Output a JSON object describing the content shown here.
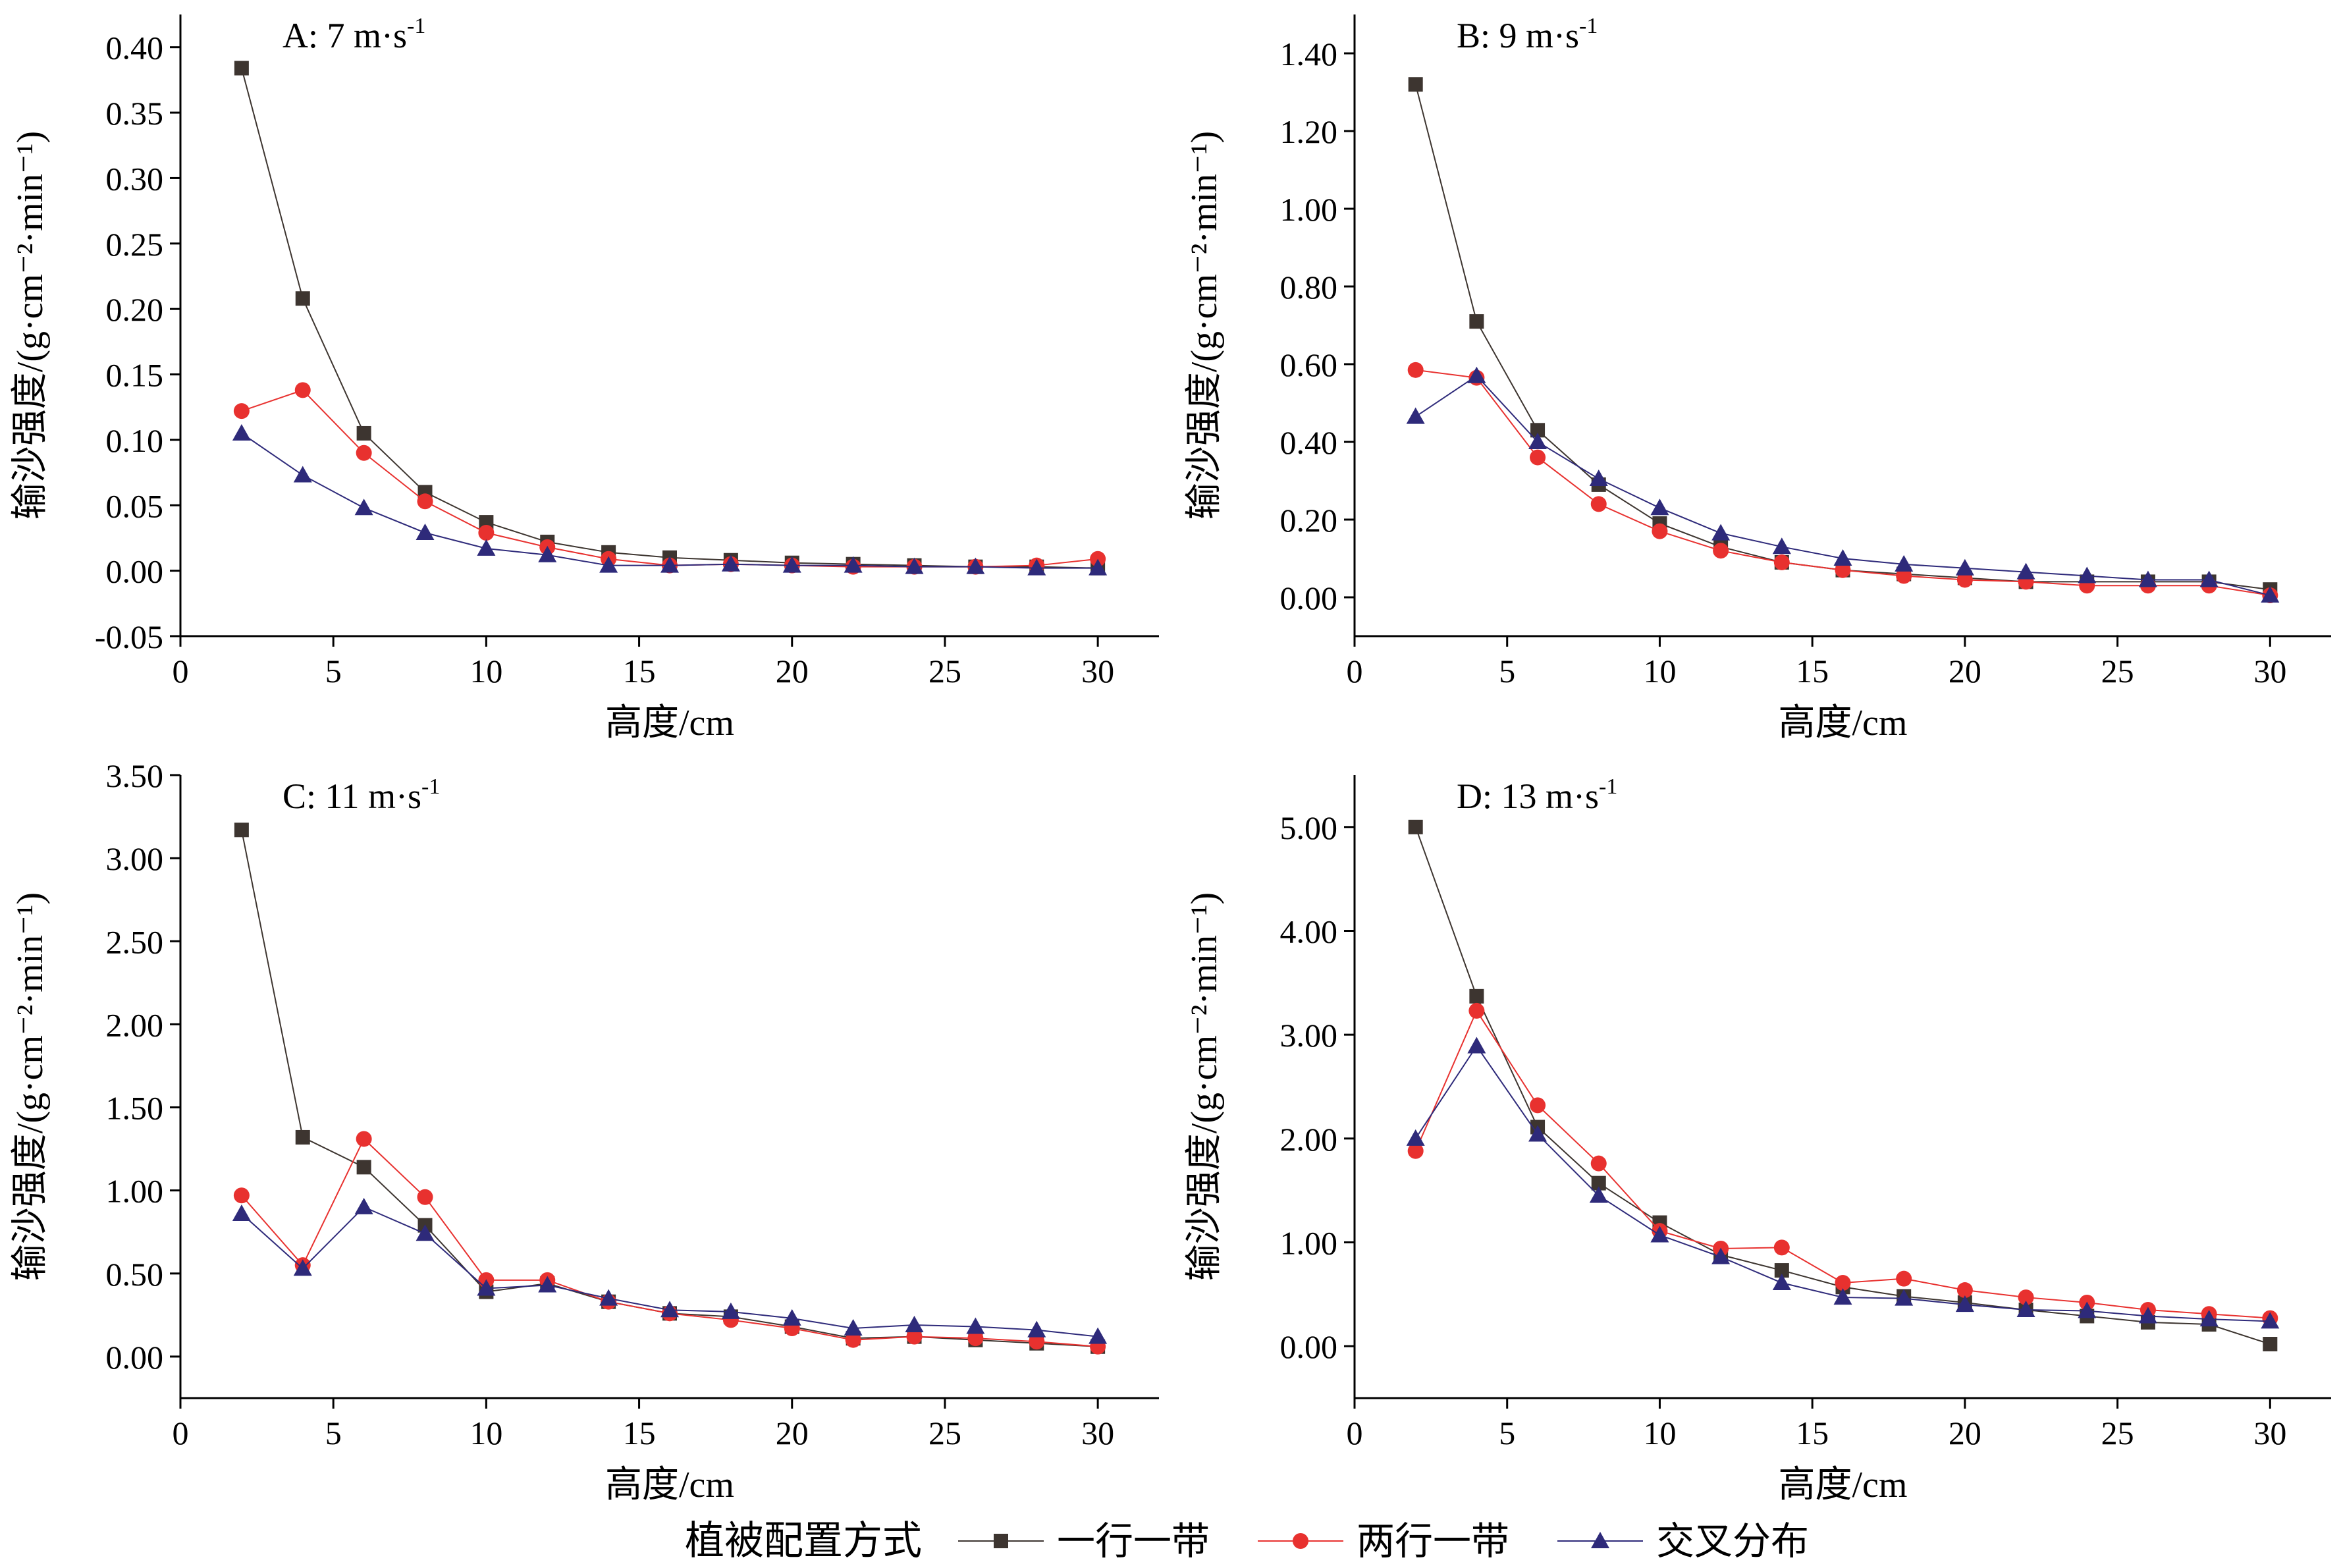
{
  "x_axis_label": "高度/cm",
  "y_axis_label": "输沙强度/(g·cm⁻²·min⁻¹)",
  "legend": {
    "title": "植被配置方式",
    "entries": [
      "一行一带",
      "两行一带",
      "交叉分布"
    ]
  },
  "series_styles": [
    {
      "name": "一行一带",
      "color": "#3d3530",
      "marker": "square"
    },
    {
      "name": "两行一带",
      "color": "#e8312f",
      "marker": "circle"
    },
    {
      "name": "交叉分布",
      "color": "#2e2a7a",
      "marker": "triangle"
    }
  ],
  "chart_data": [
    {
      "type": "line",
      "panel_label": "A: 7 m·s",
      "panel_sup": "-1",
      "x": [
        2,
        4,
        6,
        8,
        10,
        12,
        14,
        16,
        18,
        20,
        22,
        24,
        26,
        28,
        30
      ],
      "xlim": [
        0,
        32
      ],
      "xticks": [
        0,
        5,
        10,
        15,
        20,
        25,
        30
      ],
      "ylim": [
        -0.05,
        0.425
      ],
      "yticks": [
        -0.05,
        0.0,
        0.05,
        0.1,
        0.15,
        0.2,
        0.25,
        0.3,
        0.35,
        0.4
      ],
      "ytick_labels": [
        "-0.05",
        "0.00",
        "0.05",
        "0.10",
        "0.15",
        "0.20",
        "0.25",
        "0.30",
        "0.35",
        "0.40"
      ],
      "series": [
        {
          "name": "一行一带",
          "values": [
            0.384,
            0.208,
            0.105,
            0.06,
            0.037,
            0.022,
            0.014,
            0.01,
            0.008,
            0.006,
            0.005,
            0.004,
            0.003,
            0.003,
            0.002
          ]
        },
        {
          "name": "两行一带",
          "values": [
            0.122,
            0.138,
            0.09,
            0.053,
            0.029,
            0.018,
            0.009,
            0.004,
            0.005,
            0.004,
            0.003,
            0.003,
            0.003,
            0.004,
            0.009
          ]
        },
        {
          "name": "交叉分布",
          "values": [
            0.105,
            0.073,
            0.048,
            0.029,
            0.017,
            0.012,
            0.004,
            0.004,
            0.005,
            0.004,
            0.004,
            0.003,
            0.003,
            0.002,
            0.002
          ]
        }
      ]
    },
    {
      "type": "line",
      "panel_label": "B: 9 m·s",
      "panel_sup": "-1",
      "x": [
        2,
        4,
        6,
        8,
        10,
        12,
        14,
        16,
        18,
        20,
        22,
        24,
        26,
        28,
        30
      ],
      "xlim": [
        0,
        32
      ],
      "xticks": [
        0,
        5,
        10,
        15,
        20,
        25,
        30
      ],
      "ylim": [
        -0.1,
        1.5
      ],
      "yticks": [
        0.0,
        0.2,
        0.4,
        0.6,
        0.8,
        1.0,
        1.2,
        1.4
      ],
      "ytick_labels": [
        "0.00",
        "0.20",
        "0.40",
        "0.60",
        "0.80",
        "1.00",
        "1.20",
        "1.40"
      ],
      "series": [
        {
          "name": "一行一带",
          "values": [
            1.32,
            0.71,
            0.43,
            0.29,
            0.19,
            0.13,
            0.09,
            0.07,
            0.06,
            0.05,
            0.04,
            0.04,
            0.04,
            0.04,
            0.02
          ]
        },
        {
          "name": "两行一带",
          "values": [
            0.585,
            0.565,
            0.36,
            0.24,
            0.17,
            0.12,
            0.09,
            0.07,
            0.055,
            0.045,
            0.04,
            0.03,
            0.03,
            0.03,
            0.005
          ]
        },
        {
          "name": "交叉分布",
          "values": [
            0.465,
            0.57,
            0.4,
            0.305,
            0.23,
            0.165,
            0.13,
            0.1,
            0.085,
            0.075,
            0.065,
            0.055,
            0.045,
            0.045,
            0.005
          ]
        }
      ]
    },
    {
      "type": "line",
      "panel_label": "C: 11 m·s",
      "panel_sup": "-1",
      "x": [
        2,
        4,
        6,
        8,
        10,
        12,
        14,
        16,
        18,
        20,
        22,
        24,
        26,
        28,
        30
      ],
      "xlim": [
        0,
        32
      ],
      "xticks": [
        0,
        5,
        10,
        15,
        20,
        25,
        30
      ],
      "ylim": [
        -0.25,
        3.5
      ],
      "yticks": [
        0.0,
        0.5,
        1.0,
        1.5,
        2.0,
        2.5,
        3.0,
        3.5
      ],
      "ytick_labels": [
        "0.00",
        "0.50",
        "1.00",
        "1.50",
        "2.00",
        "2.50",
        "3.00",
        "3.50"
      ],
      "series": [
        {
          "name": "一行一带",
          "values": [
            3.17,
            1.32,
            1.14,
            0.79,
            0.39,
            0.44,
            0.33,
            0.26,
            0.24,
            0.18,
            0.11,
            0.12,
            0.1,
            0.08,
            0.06
          ]
        },
        {
          "name": "两行一带",
          "values": [
            0.97,
            0.55,
            1.31,
            0.96,
            0.46,
            0.46,
            0.33,
            0.26,
            0.22,
            0.17,
            0.1,
            0.12,
            0.11,
            0.09,
            0.06
          ]
        },
        {
          "name": "交叉分布",
          "values": [
            0.86,
            0.53,
            0.9,
            0.74,
            0.41,
            0.43,
            0.35,
            0.28,
            0.27,
            0.23,
            0.17,
            0.19,
            0.18,
            0.16,
            0.12
          ]
        }
      ]
    },
    {
      "type": "line",
      "panel_label": "D: 13 m·s",
      "panel_sup": "-1",
      "x": [
        2,
        4,
        6,
        8,
        10,
        12,
        14,
        16,
        18,
        20,
        22,
        24,
        26,
        28,
        30
      ],
      "xlim": [
        0,
        32
      ],
      "xticks": [
        0,
        5,
        10,
        15,
        20,
        25,
        30
      ],
      "ylim": [
        -0.5,
        5.5
      ],
      "yticks": [
        0.0,
        1.0,
        2.0,
        3.0,
        4.0,
        5.0
      ],
      "ytick_labels": [
        "0.00",
        "1.00",
        "2.00",
        "3.00",
        "4.00",
        "5.00"
      ],
      "series": [
        {
          "name": "一行一带",
          "values": [
            5.0,
            3.37,
            2.11,
            1.57,
            1.19,
            0.88,
            0.73,
            0.57,
            0.48,
            0.42,
            0.35,
            0.29,
            0.23,
            0.21,
            0.02
          ]
        },
        {
          "name": "两行一带",
          "values": [
            1.88,
            3.23,
            2.32,
            1.76,
            1.11,
            0.94,
            0.95,
            0.61,
            0.65,
            0.54,
            0.47,
            0.42,
            0.35,
            0.31,
            0.27
          ]
        },
        {
          "name": "交叉分布",
          "values": [
            2.0,
            2.89,
            2.04,
            1.45,
            1.07,
            0.86,
            0.61,
            0.47,
            0.46,
            0.4,
            0.35,
            0.34,
            0.29,
            0.26,
            0.24
          ]
        }
      ]
    }
  ]
}
